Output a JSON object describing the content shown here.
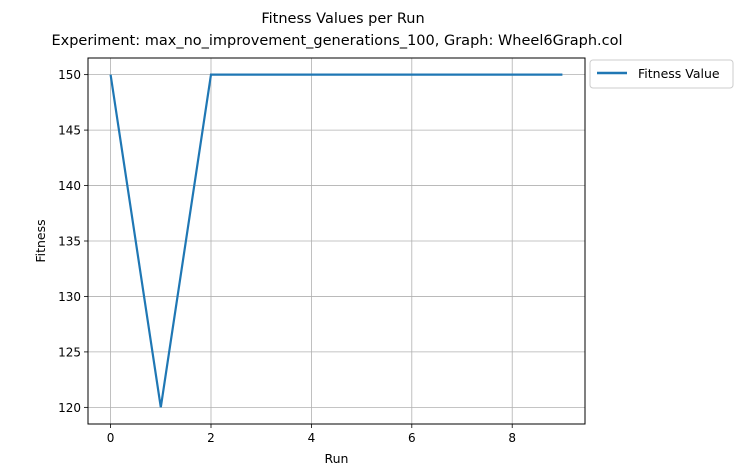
{
  "chart_data": {
    "type": "line",
    "title": "Fitness Values per Run",
    "subtitle": "Experiment: max_no_improvement_generations_100, Graph: Wheel6Graph.col",
    "xlabel": "Run",
    "ylabel": "Fitness",
    "x": [
      0,
      1,
      2,
      3,
      4,
      5,
      6,
      7,
      8,
      9
    ],
    "series": [
      {
        "name": "Fitness Value",
        "values": [
          150,
          120,
          150,
          150,
          150,
          150,
          150,
          150,
          150,
          150
        ],
        "color": "#1f77b4"
      }
    ],
    "xticks": [
      0,
      2,
      4,
      6,
      8
    ],
    "yticks": [
      120,
      125,
      130,
      135,
      140,
      145,
      150
    ],
    "xlim": [
      -0.45,
      9.45
    ],
    "ylim": [
      118.5,
      151.5
    ],
    "grid": true,
    "legend_position": "outside-top-right"
  }
}
